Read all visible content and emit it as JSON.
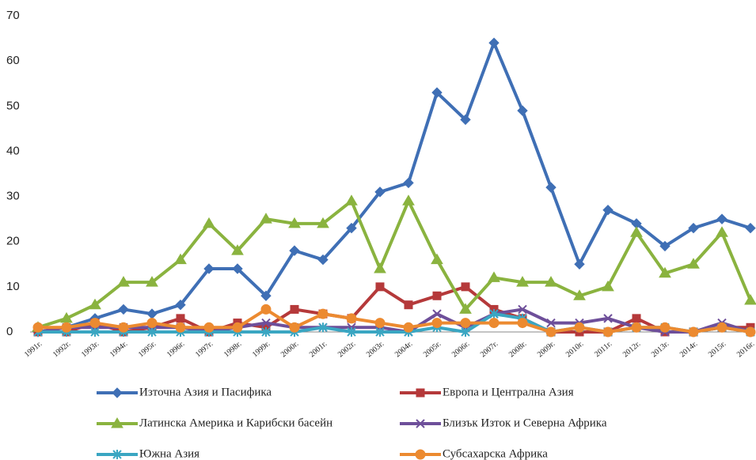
{
  "chart_data": {
    "type": "line",
    "categories": [
      "1991г.",
      "1992г.",
      "1993г.",
      "1994г.",
      "1995г.",
      "1996г.",
      "1997г.",
      "1998г.",
      "1999г.",
      "2000г.",
      "2001г.",
      "2002г.",
      "2003г.",
      "2004г.",
      "2005г.",
      "2006г.",
      "2007г.",
      "2008г.",
      "2009г.",
      "2010г.",
      "2011г.",
      "2012г.",
      "2013г.",
      "2014г.",
      "2015г.",
      "2016г."
    ],
    "series": [
      {
        "name": "Източна Азия и Пасифика",
        "color": "#3f6fb5",
        "marker": "diamond",
        "values": [
          0,
          1,
          3,
          5,
          4,
          6,
          14,
          14,
          8,
          18,
          16,
          23,
          31,
          33,
          53,
          47,
          64,
          49,
          32,
          15,
          27,
          24,
          19,
          23,
          25,
          23
        ]
      },
      {
        "name": "Европа и Централна Азия",
        "color": "#b5393a",
        "marker": "square",
        "values": [
          0,
          0,
          2,
          0,
          1,
          3,
          0,
          2,
          1,
          5,
          4,
          3,
          10,
          6,
          8,
          10,
          5,
          3,
          0,
          0,
          0,
          3,
          0,
          0,
          1,
          1
        ]
      },
      {
        "name": "Латинска Америка и Карибски басейн",
        "color": "#8ab33f",
        "marker": "triangle",
        "values": [
          1,
          3,
          6,
          11,
          11,
          16,
          24,
          18,
          25,
          24,
          24,
          29,
          14,
          29,
          16,
          5,
          12,
          11,
          11,
          8,
          10,
          22,
          13,
          15,
          22,
          7
        ]
      },
      {
        "name": "Близък Изток и  Северна Африка",
        "color": "#6e4f9a",
        "marker": "x",
        "values": [
          0,
          1,
          1,
          1,
          1,
          1,
          0,
          1,
          2,
          1,
          1,
          1,
          1,
          0,
          4,
          1,
          4,
          5,
          2,
          2,
          3,
          1,
          0,
          0,
          2,
          0
        ]
      },
      {
        "name": "Южна Азия",
        "color": "#3aa6c2",
        "marker": "star",
        "values": [
          0,
          0,
          0,
          0,
          0,
          0,
          0,
          0,
          0,
          0,
          1,
          0,
          0,
          0,
          1,
          0,
          4,
          3,
          0,
          1,
          0,
          1,
          1,
          0,
          1,
          0
        ]
      },
      {
        "name": "Субсахарска Африка",
        "color": "#ec8a30",
        "marker": "circle",
        "values": [
          1,
          1,
          2,
          1,
          2,
          1,
          1,
          1,
          5,
          1,
          4,
          3,
          2,
          1,
          2,
          2,
          2,
          2,
          0,
          1,
          0,
          1,
          1,
          0,
          1,
          0
        ]
      }
    ],
    "ylim": [
      0,
      70
    ],
    "yticks": [
      0,
      10,
      20,
      30,
      40,
      50,
      60,
      70
    ]
  }
}
